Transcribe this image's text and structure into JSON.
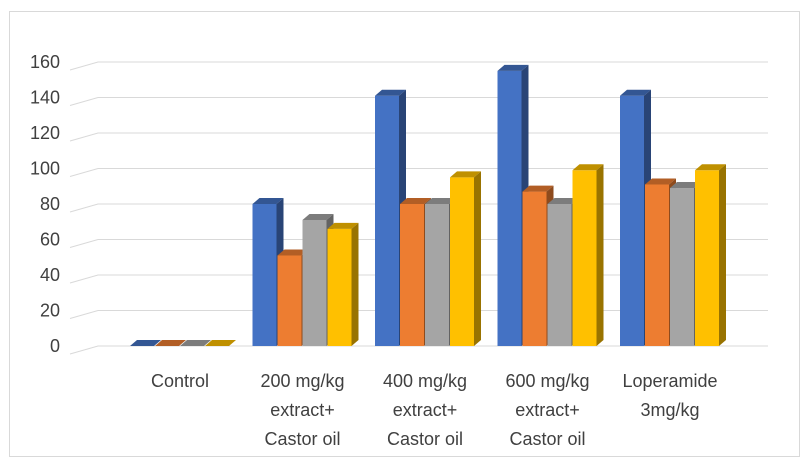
{
  "chart_data": {
    "type": "bar",
    "style": "3d-clustered-column",
    "title": "",
    "xlabel": "",
    "ylabel": "",
    "categories": [
      [
        "Control"
      ],
      [
        "200 mg/kg",
        "extract+",
        "Castor oil"
      ],
      [
        "400 mg/kg",
        "extract+",
        "Castor oil"
      ],
      [
        "600 mg/kg",
        "extract+",
        "Castor oil"
      ],
      [
        "Loperamide",
        "3mg/kg"
      ]
    ],
    "series": [
      {
        "values": [
          0,
          80,
          141,
          155,
          141
        ],
        "color": "#4472C4"
      },
      {
        "values": [
          0,
          51,
          80,
          87,
          91
        ],
        "color": "#ED7D31"
      },
      {
        "values": [
          0,
          71,
          80,
          80,
          89
        ],
        "color": "#A5A5A5"
      },
      {
        "values": [
          0,
          66,
          95,
          99,
          99
        ],
        "color": "#FFC000"
      }
    ],
    "ylim": [
      0,
      160
    ],
    "yticks": [
      0,
      20,
      40,
      60,
      80,
      100,
      120,
      140,
      160
    ],
    "grid": true,
    "legend": "none"
  }
}
